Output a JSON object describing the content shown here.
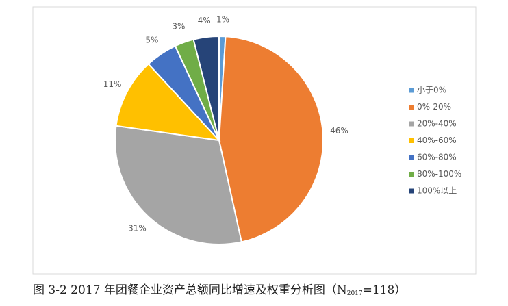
{
  "chart_data": {
    "type": "pie",
    "categories": [
      "小于0%",
      "0%-20%",
      "20%-40%",
      "40%-60%",
      "60%-80%",
      "80%-100%",
      "100%以上"
    ],
    "values": [
      1,
      46,
      31,
      11,
      5,
      3,
      4
    ],
    "value_labels": [
      "1%",
      "46%",
      "31%",
      "11%",
      "5%",
      "3%",
      "4%"
    ],
    "colors": [
      "#5b9bd5",
      "#ed7d31",
      "#a5a5a5",
      "#ffc000",
      "#4472c4",
      "#70ad47",
      "#264478"
    ],
    "legend": "right"
  },
  "caption": {
    "main": "图 3-2 2017 年团餐企业资产总额同比增速及权重分析图（N",
    "sub": "2017",
    "end": "=118）"
  }
}
